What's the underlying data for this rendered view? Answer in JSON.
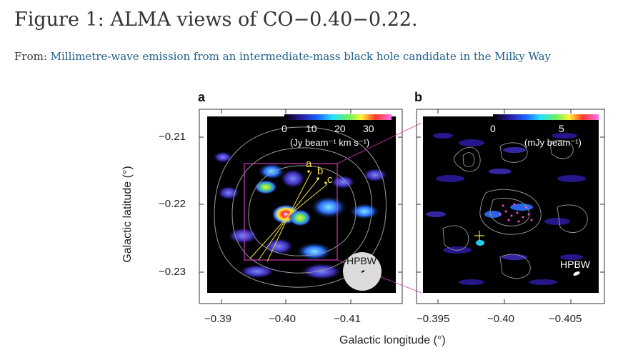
{
  "figure": {
    "title": "Figure 1: ALMA views of CO−0.40−0.22.",
    "from_prefix": "From: ",
    "from_link": "Millimetre-wave emission from an intermediate-mass black hole candidate in the Milky Way"
  },
  "panels": {
    "a": {
      "label": "a",
      "colorbar_ticks": [
        "0",
        "10",
        "20",
        "30"
      ],
      "colorbar_unit": "(Jy beam⁻¹ km s⁻¹)",
      "sources": [
        "a",
        "b",
        "c"
      ],
      "beam_label": "HPBW"
    },
    "b": {
      "label": "b",
      "colorbar_ticks": [
        "0",
        "5"
      ],
      "colorbar_unit": "(mJy beam⁻¹)",
      "beam_label": "HPBW"
    }
  },
  "axes": {
    "ylabel": "Galactic latitude (°)",
    "xlabel": "Galactic longitude (°)",
    "y_ticks": [
      "−0.21",
      "−0.22",
      "−0.23"
    ],
    "a_x_ticks": [
      "−0.39",
      "−0.40",
      "−0.41"
    ],
    "b_x_ticks": [
      "−0.395",
      "−0.40",
      "−0.405"
    ]
  },
  "colors": {
    "link": "#1f5f8b",
    "panel_bg": "#000000",
    "source_marker": "#f5e03b",
    "box": "#d03bb4"
  }
}
